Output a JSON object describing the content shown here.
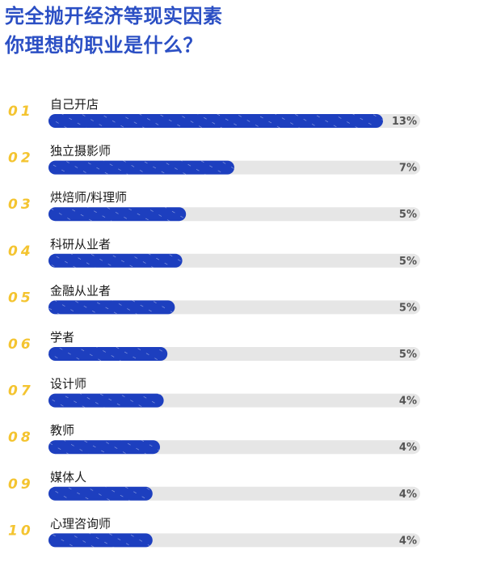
{
  "title_lines": [
    "完全抛开经济等现实因素",
    "你理想的职业是什么？"
  ],
  "colors": {
    "title": "#2b4fc4",
    "bar": "#1d3fbf",
    "track": "#e6e6e6",
    "rank": "#f4c430",
    "label": "#1a1a1a",
    "value": "#555555"
  },
  "chart_data": {
    "type": "bar",
    "orientation": "horizontal",
    "title": "完全抛开经济等现实因素 你理想的职业是什么？",
    "ranks": [
      "01",
      "02",
      "03",
      "04",
      "05",
      "06",
      "07",
      "08",
      "09",
      "10"
    ],
    "categories": [
      "自己开店",
      "独立摄影师",
      "烘焙师/料理师",
      "科研从业者",
      "金融从业者",
      "学者",
      "设计师",
      "教师",
      "媒体人",
      "心理咨询师"
    ],
    "values": [
      13,
      7,
      5,
      5,
      5,
      5,
      4,
      4,
      4,
      4
    ],
    "bar_fraction": [
      0.9,
      0.5,
      0.37,
      0.36,
      0.34,
      0.32,
      0.31,
      0.3,
      0.28,
      0.28
    ],
    "value_labels": [
      "13%",
      "7%",
      "5%",
      "5%",
      "5%",
      "5%",
      "4%",
      "4%",
      "4%",
      "4%"
    ],
    "xlabel": "",
    "ylabel": "",
    "legend": "none",
    "grid": false
  }
}
